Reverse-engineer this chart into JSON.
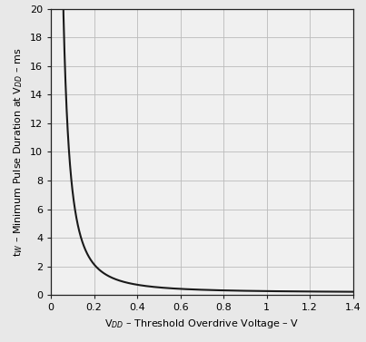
{
  "xlabel": "V$_{DD}$ – Threshold Overdrive Voltage – V",
  "ylabel": "t$_W$ – Minimum Pulse Duration at V$_{DD}$ – ms",
  "xlim": [
    0,
    1.4
  ],
  "ylim": [
    0,
    20
  ],
  "xticks": [
    0,
    0.2,
    0.4,
    0.6,
    0.8,
    1.0,
    1.2,
    1.4
  ],
  "yticks": [
    0,
    2,
    4,
    6,
    8,
    10,
    12,
    14,
    16,
    18,
    20
  ],
  "curve_color": "#1a1a1a",
  "curve_linewidth": 1.5,
  "bg_color": "#f0f0f0",
  "grid_color": "#bbbbbb",
  "figsize": [
    4.03,
    3.77
  ],
  "dpi": 100,
  "curve_A": 0.1,
  "curve_n": 1.85,
  "curve_base": 0.18,
  "tick_fontsize": 8,
  "label_fontsize": 8
}
